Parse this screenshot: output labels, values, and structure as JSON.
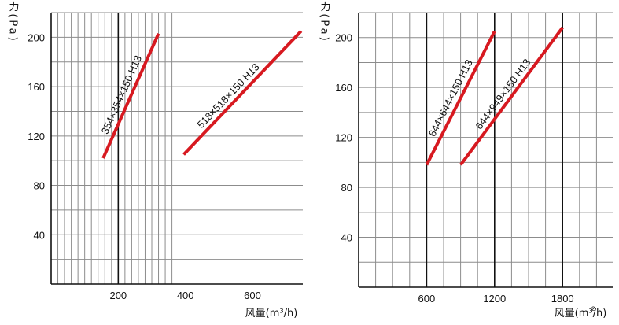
{
  "chart_data": [
    {
      "type": "line",
      "ylabel": "阻力(Pa)",
      "xlabel": "风量(m³/h)",
      "xlim": [
        0,
        750
      ],
      "ylim": [
        0,
        220
      ],
      "x_ticks": [
        200,
        400,
        600
      ],
      "y_ticks": [
        40,
        80,
        120,
        160,
        200
      ],
      "grid": true,
      "series": [
        {
          "name": "354×354×150 H13",
          "color": "#d71920",
          "points": [
            [
              155,
              102
            ],
            [
              320,
              203
            ]
          ]
        },
        {
          "name": "518×518×150 H13",
          "color": "#d71920",
          "points": [
            [
              395,
              105
            ],
            [
              745,
              205
            ]
          ]
        }
      ]
    },
    {
      "type": "line",
      "ylabel": "阻力(Pa)",
      "xlabel": "风量(m³/h)",
      "xlim": [
        0,
        2250
      ],
      "ylim": [
        0,
        220
      ],
      "x_ticks": [
        600,
        1200,
        1800
      ],
      "y_ticks": [
        40,
        80,
        120,
        160,
        200
      ],
      "grid": true,
      "series": [
        {
          "name": "644×644×150 H13",
          "color": "#d71920",
          "points": [
            [
              600,
              98
            ],
            [
              1200,
              205
            ]
          ]
        },
        {
          "name": "644×949×150 H13",
          "color": "#d71920",
          "points": [
            [
              900,
              98
            ],
            [
              1800,
              208
            ]
          ]
        }
      ]
    }
  ],
  "stray_mark": "²"
}
